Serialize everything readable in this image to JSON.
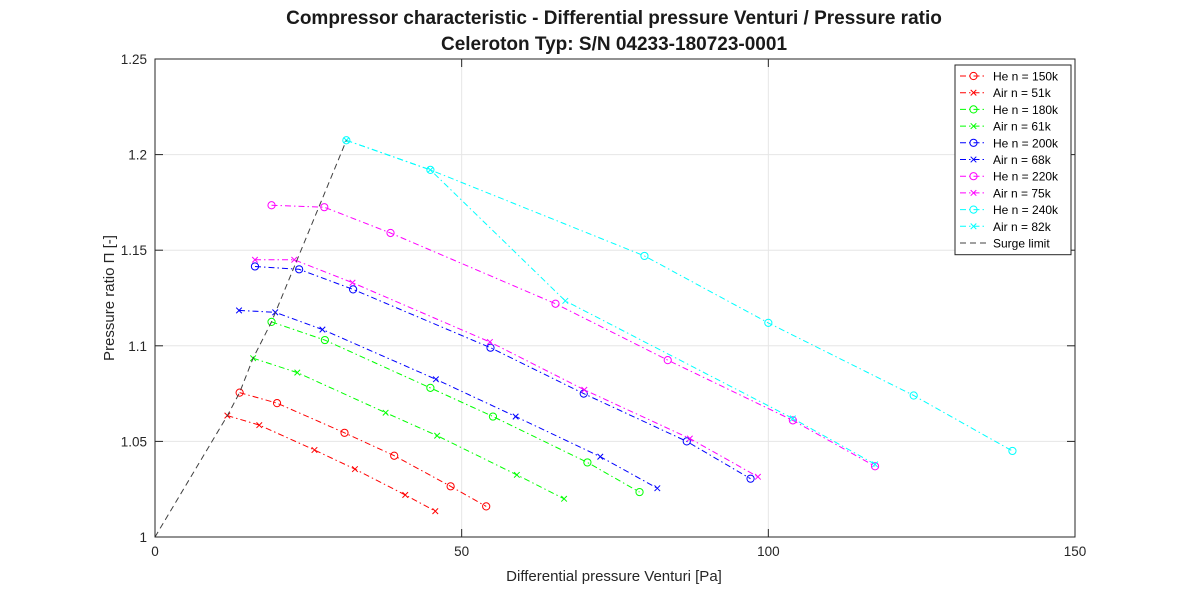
{
  "chart_data": {
    "type": "line",
    "title": "Compressor characteristic - Differential pressure Venturi / Pressure ratio",
    "subtitle": "Celeroton Typ: S/N 04233-180723-0001",
    "xlabel": "Differential pressure Venturi [Pa]",
    "ylabel": "Pressure ratio Π [-]",
    "xlim": [
      0,
      150
    ],
    "ylim": [
      1,
      1.25
    ],
    "x_ticks": [
      "0",
      "50",
      "100",
      "150"
    ],
    "y_ticks": [
      "1",
      "1.05",
      "1.1",
      "1.15",
      "1.2",
      "1.25"
    ],
    "grid": true,
    "legend_position": "top-right",
    "series": [
      {
        "name": "He n = 150k",
        "color": "#ff0000",
        "marker": "circle",
        "dash": "dashdot",
        "x": [
          13.8,
          19.9,
          30.9,
          39.0,
          48.2,
          54.0
        ],
        "y": [
          1.0755,
          1.07,
          1.0545,
          1.0425,
          1.0265,
          1.016
        ]
      },
      {
        "name": "Air n = 51k",
        "color": "#ff0000",
        "marker": "x",
        "dash": "dashdot",
        "x": [
          11.8,
          17.0,
          26.0,
          32.6,
          40.8,
          45.7
        ],
        "y": [
          1.0635,
          1.0585,
          1.0455,
          1.0355,
          1.022,
          1.0135
        ]
      },
      {
        "name": "He n = 180k",
        "color": "#00ff00",
        "marker": "circle",
        "dash": "dashdot",
        "x": [
          19.0,
          27.7,
          44.9,
          55.1,
          70.5,
          79.0
        ],
        "y": [
          1.1125,
          1.103,
          1.078,
          1.063,
          1.039,
          1.0235
        ]
      },
      {
        "name": "Air n = 61k",
        "color": "#00ff00",
        "marker": "x",
        "dash": "dashdot",
        "x": [
          16.0,
          23.2,
          37.6,
          46.0,
          59.0,
          66.7
        ],
        "y": [
          1.0935,
          1.086,
          1.065,
          1.053,
          1.0325,
          1.02
        ]
      },
      {
        "name": "He n = 200k",
        "color": "#0000ff",
        "marker": "circle",
        "dash": "dashdot",
        "x": [
          16.3,
          23.5,
          32.3,
          54.7,
          69.9,
          86.7,
          97.1
        ],
        "y": [
          1.1415,
          1.14,
          1.1295,
          1.099,
          1.075,
          1.05,
          1.0305
        ]
      },
      {
        "name": "Air n = 68k",
        "color": "#0000ff",
        "marker": "x",
        "dash": "dashdot",
        "x": [
          13.7,
          19.6,
          27.3,
          45.8,
          58.8,
          72.6,
          81.9
        ],
        "y": [
          1.1185,
          1.1175,
          1.1085,
          1.0825,
          1.063,
          1.042,
          1.0255
        ]
      },
      {
        "name": "He n = 220k",
        "color": "#ff00ff",
        "marker": "circle",
        "dash": "dashdot",
        "x": [
          19.0,
          27.6,
          38.4,
          65.3,
          83.6,
          104.0,
          117.4
        ],
        "y": [
          1.1735,
          1.1725,
          1.159,
          1.122,
          1.0925,
          1.061,
          1.037
        ]
      },
      {
        "name": "Air n = 75k",
        "color": "#ff00ff",
        "marker": "x",
        "dash": "dashdot",
        "x": [
          16.3,
          22.7,
          32.2,
          54.6,
          70.0,
          87.2,
          98.3
        ],
        "y": [
          1.145,
          1.145,
          1.133,
          1.102,
          1.077,
          1.0515,
          1.0315
        ]
      },
      {
        "name": "He n = 240k",
        "color": "#00ffff",
        "marker": "circle",
        "dash": "dashdot",
        "x": [
          31.2,
          44.9,
          79.8,
          100.0,
          123.7,
          139.8
        ],
        "y": [
          1.2075,
          1.192,
          1.147,
          1.112,
          1.074,
          1.045
        ]
      },
      {
        "name": "Air n = 82k",
        "color": "#00ffff",
        "marker": "x",
        "dash": "dashdot",
        "x": [
          31.2,
          44.9,
          66.9,
          104.0,
          117.4
        ],
        "y": [
          1.2075,
          1.192,
          1.1235,
          1.062,
          1.038
        ]
      },
      {
        "name": "Surge limit",
        "color": "#404040",
        "marker": "none",
        "dash": "dashed",
        "x": [
          0,
          11.8,
          13.8,
          16.0,
          19.0,
          31.2
        ],
        "y": [
          1.0,
          1.0635,
          1.0755,
          1.0935,
          1.1125,
          1.2075
        ]
      }
    ]
  }
}
